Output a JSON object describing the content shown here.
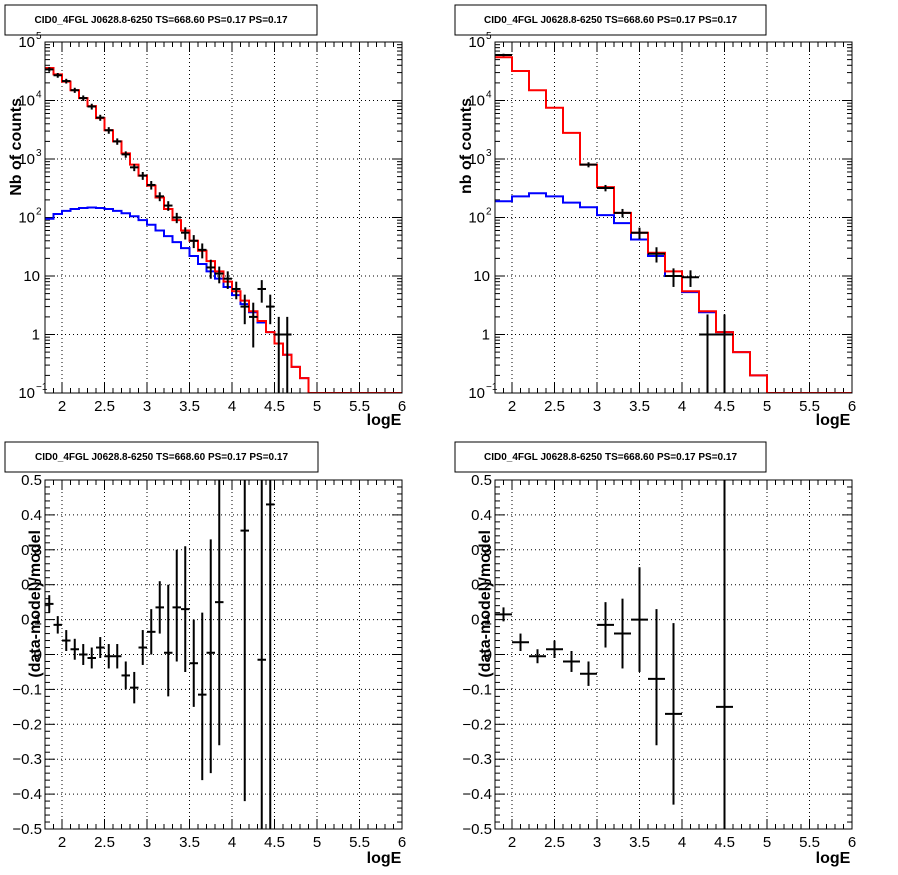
{
  "colors": {
    "model_total": "#ff0000",
    "model_background": "#0000ff",
    "data": "#000000"
  },
  "chart_data": [
    {
      "type": "line",
      "title": "CID0_4FGL J0628.8-6250 TS=668.60 PS=0.17 PS=0.17",
      "xlabel": "logE",
      "ylabel": "Nb of counts",
      "xlim": [
        1.8,
        6.0
      ],
      "ylim": [
        0.1,
        100000
      ],
      "yscale": "log",
      "grid": true,
      "x_ticks": [
        "2",
        "2.5",
        "3",
        "3.5",
        "4",
        "4.5",
        "5",
        "5.5",
        "6"
      ],
      "y_ticks": [
        {
          "base": "10",
          "exp": "−1"
        },
        {
          "base": "1",
          "exp": ""
        },
        {
          "base": "10",
          "exp": ""
        },
        {
          "base": "10",
          "exp": "2"
        },
        {
          "base": "10",
          "exp": "3"
        },
        {
          "base": "10",
          "exp": "4"
        },
        {
          "base": "10",
          "exp": "5"
        }
      ],
      "bin_edges": [
        1.8,
        1.9,
        2.0,
        2.1,
        2.2,
        2.3,
        2.4,
        2.5,
        2.6,
        2.7,
        2.8,
        2.9,
        3.0,
        3.1,
        3.2,
        3.3,
        3.4,
        3.5,
        3.6,
        3.7,
        3.8,
        3.9,
        4.0,
        4.1,
        4.2,
        4.3,
        4.4,
        4.5,
        4.6,
        4.7,
        4.8,
        4.9,
        5.0,
        5.1,
        5.2,
        5.3,
        5.4,
        5.5,
        5.6,
        5.7,
        5.8,
        5.9,
        6.0
      ],
      "series": [
        {
          "role": "model_total",
          "values": [
            36000,
            28000,
            21000,
            15000,
            11000,
            8000,
            5000,
            3100,
            2000,
            1250,
            800,
            520,
            350,
            220,
            140,
            90,
            60,
            40,
            27,
            18,
            12,
            8,
            5.5,
            3.8,
            2.5,
            1.7,
            1.1,
            0.7,
            0.45,
            0.28,
            0.18,
            0.1,
            0.1,
            0.1,
            0.1,
            0.1,
            0.1,
            0.1,
            0.1,
            0.1,
            0.1,
            0.1
          ]
        },
        {
          "role": "model_background",
          "values": [
            95,
            115,
            130,
            140,
            145,
            148,
            145,
            140,
            130,
            118,
            105,
            90,
            75,
            60,
            48,
            38,
            30,
            22,
            16,
            12,
            9,
            6.5,
            4.7,
            3.3,
            2.4,
            1.6,
            1.1,
            0.7,
            0.45,
            0.28,
            0.18,
            0.1,
            0.1,
            0.1,
            0.1,
            0.1,
            0.1,
            0.1,
            0.1,
            0.1,
            0.1,
            0.1
          ]
        },
        {
          "role": "data",
          "points": [
            {
              "x": 1.85,
              "y": 34000,
              "lo": 31000,
              "hi": 37000
            },
            {
              "x": 1.95,
              "y": 27000,
              "lo": 24500,
              "hi": 29500
            },
            {
              "x": 2.05,
              "y": 21500,
              "lo": 19500,
              "hi": 23500
            },
            {
              "x": 2.15,
              "y": 15000,
              "lo": 13500,
              "hi": 16500
            },
            {
              "x": 2.25,
              "y": 11000,
              "lo": 9800,
              "hi": 12200
            },
            {
              "x": 2.35,
              "y": 7900,
              "lo": 7000,
              "hi": 8800
            },
            {
              "x": 2.45,
              "y": 5100,
              "lo": 4500,
              "hi": 5700
            },
            {
              "x": 2.55,
              "y": 3100,
              "lo": 2700,
              "hi": 3500
            },
            {
              "x": 2.65,
              "y": 2000,
              "lo": 1750,
              "hi": 2250
            },
            {
              "x": 2.75,
              "y": 1200,
              "lo": 1050,
              "hi": 1350
            },
            {
              "x": 2.85,
              "y": 720,
              "lo": 620,
              "hi": 820
            },
            {
              "x": 2.95,
              "y": 520,
              "lo": 440,
              "hi": 600
            },
            {
              "x": 3.05,
              "y": 360,
              "lo": 300,
              "hi": 420
            },
            {
              "x": 3.15,
              "y": 230,
              "lo": 190,
              "hi": 270
            },
            {
              "x": 3.25,
              "y": 160,
              "lo": 130,
              "hi": 190
            },
            {
              "x": 3.35,
              "y": 100,
              "lo": 80,
              "hi": 120
            },
            {
              "x": 3.45,
              "y": 55,
              "lo": 42,
              "hi": 68
            },
            {
              "x": 3.55,
              "y": 40,
              "lo": 30,
              "hi": 50
            },
            {
              "x": 3.65,
              "y": 28,
              "lo": 20,
              "hi": 36
            },
            {
              "x": 3.75,
              "y": 14,
              "lo": 9,
              "hi": 19
            },
            {
              "x": 3.85,
              "y": 11,
              "lo": 7.5,
              "hi": 14.5
            },
            {
              "x": 3.95,
              "y": 9,
              "lo": 6,
              "hi": 12
            },
            {
              "x": 4.05,
              "y": 6,
              "lo": 4,
              "hi": 8
            },
            {
              "x": 4.15,
              "y": 3,
              "lo": 1.5,
              "hi": 4.8
            },
            {
              "x": 4.25,
              "y": 2,
              "lo": 0.6,
              "hi": 3.5
            },
            {
              "x": 4.35,
              "y": 6,
              "lo": 3.5,
              "hi": 8.5
            },
            {
              "x": 4.45,
              "y": 3,
              "lo": 1.5,
              "hi": 4.8
            },
            {
              "x": 4.55,
              "y": 1,
              "lo": 0.1,
              "hi": 2.0
            },
            {
              "x": 4.65,
              "y": 1,
              "lo": 0.1,
              "hi": 2.0
            }
          ]
        }
      ]
    },
    {
      "type": "line",
      "title": "CID0_4FGL J0628.8-6250 TS=668.60 PS=0.17 PS=0.17",
      "xlabel": "logE",
      "ylabel": "nb of counts",
      "xlim": [
        1.8,
        6.0
      ],
      "ylim": [
        0.1,
        100000
      ],
      "yscale": "log",
      "grid": true,
      "x_ticks": [
        "2",
        "2.5",
        "3",
        "3.5",
        "4",
        "4.5",
        "5",
        "5.5",
        "6"
      ],
      "y_ticks": [
        {
          "base": "10",
          "exp": "−1"
        },
        {
          "base": "1",
          "exp": ""
        },
        {
          "base": "10",
          "exp": ""
        },
        {
          "base": "10",
          "exp": "2"
        },
        {
          "base": "10",
          "exp": "3"
        },
        {
          "base": "10",
          "exp": "4"
        },
        {
          "base": "10",
          "exp": "5"
        }
      ],
      "bin_edges": [
        1.8,
        2.0,
        2.2,
        2.4,
        2.6,
        2.8,
        3.0,
        3.2,
        3.4,
        3.6,
        3.8,
        4.0,
        4.2,
        4.4,
        4.6,
        4.8,
        5.0,
        5.2,
        5.4,
        5.6,
        5.8,
        6.0
      ],
      "series": [
        {
          "role": "model_total",
          "values": [
            55000,
            32000,
            15000,
            7500,
            2800,
            800,
            330,
            120,
            55,
            25,
            12,
            5.5,
            2.5,
            1.1,
            0.5,
            0.2,
            0.1,
            0.1,
            0.1,
            0.1,
            0.1
          ]
        },
        {
          "role": "model_background",
          "values": [
            190,
            230,
            260,
            230,
            180,
            150,
            110,
            80,
            42,
            22,
            10,
            5.3,
            2.4,
            1.1,
            0.5,
            0.2,
            0.1,
            0.1,
            0.1,
            0.1,
            0.1
          ]
        },
        {
          "role": "data",
          "points": [
            {
              "x": 1.9,
              "y": 60000,
              "lo": 57000,
              "hi": 63000
            },
            {
              "x": 2.9,
              "y": 800,
              "lo": 720,
              "hi": 880
            },
            {
              "x": 3.1,
              "y": 320,
              "lo": 280,
              "hi": 360
            },
            {
              "x": 3.3,
              "y": 120,
              "lo": 100,
              "hi": 140
            },
            {
              "x": 3.5,
              "y": 55,
              "lo": 43,
              "hi": 67
            },
            {
              "x": 3.7,
              "y": 24,
              "lo": 17,
              "hi": 31
            },
            {
              "x": 3.9,
              "y": 10,
              "lo": 6.5,
              "hi": 13.5
            },
            {
              "x": 4.1,
              "y": 9.5,
              "lo": 6.5,
              "hi": 12.5
            },
            {
              "x": 4.3,
              "y": 1,
              "lo": 0.1,
              "hi": 2.2
            },
            {
              "x": 4.5,
              "y": 1,
              "lo": 0.1,
              "hi": 2.2
            }
          ]
        }
      ]
    },
    {
      "type": "scatter",
      "title": "CID0_4FGL J0628.8-6250 TS=668.60 PS=0.17 PS=0.17",
      "xlabel": "logE",
      "ylabel": "(data-model)/model",
      "xlim": [
        1.8,
        6.0
      ],
      "ylim": [
        -0.5,
        0.5
      ],
      "grid": true,
      "x_ticks": [
        "2",
        "2.5",
        "3",
        "3.5",
        "4",
        "4.5",
        "5",
        "5.5",
        "6"
      ],
      "y_ticks": [
        "−0.5",
        "−0.4",
        "−0.3",
        "−0.2",
        "−0.1",
        "0",
        "0.1",
        "0.2",
        "0.3",
        "0.4",
        "0.5"
      ],
      "xerr": 0.05,
      "points": [
        {
          "x": 1.85,
          "y": 0.145,
          "lo": 0.12,
          "hi": 0.17
        },
        {
          "x": 1.95,
          "y": 0.085,
          "lo": 0.06,
          "hi": 0.11
        },
        {
          "x": 2.05,
          "y": 0.04,
          "lo": 0.01,
          "hi": 0.07
        },
        {
          "x": 2.15,
          "y": 0.015,
          "lo": -0.015,
          "hi": 0.045
        },
        {
          "x": 2.25,
          "y": 0.0,
          "lo": -0.03,
          "hi": 0.03
        },
        {
          "x": 2.35,
          "y": -0.01,
          "lo": -0.04,
          "hi": 0.02
        },
        {
          "x": 2.45,
          "y": 0.02,
          "lo": -0.01,
          "hi": 0.05
        },
        {
          "x": 2.55,
          "y": -0.005,
          "lo": -0.04,
          "hi": 0.03
        },
        {
          "x": 2.65,
          "y": -0.005,
          "lo": -0.04,
          "hi": 0.03
        },
        {
          "x": 2.75,
          "y": -0.06,
          "lo": -0.1,
          "hi": -0.02
        },
        {
          "x": 2.85,
          "y": -0.095,
          "lo": -0.14,
          "hi": -0.05
        },
        {
          "x": 2.95,
          "y": 0.02,
          "lo": -0.03,
          "hi": 0.07
        },
        {
          "x": 3.05,
          "y": 0.065,
          "lo": 0.0,
          "hi": 0.13
        },
        {
          "x": 3.15,
          "y": 0.135,
          "lo": 0.06,
          "hi": 0.21
        },
        {
          "x": 3.25,
          "y": 0.005,
          "lo": -0.12,
          "hi": 0.2
        },
        {
          "x": 3.35,
          "y": 0.135,
          "lo": -0.02,
          "hi": 0.3
        },
        {
          "x": 3.45,
          "y": 0.13,
          "lo": -0.05,
          "hi": 0.31
        },
        {
          "x": 3.55,
          "y": -0.025,
          "lo": -0.15,
          "hi": 0.1
        },
        {
          "x": 3.65,
          "y": -0.115,
          "lo": -0.36,
          "hi": 0.12
        },
        {
          "x": 3.75,
          "y": 0.005,
          "lo": -0.34,
          "hi": 0.33
        },
        {
          "x": 3.85,
          "y": 0.15,
          "lo": -0.26,
          "hi": 0.5
        },
        {
          "x": 4.15,
          "y": 0.355,
          "lo": -0.42,
          "hi": 0.5
        },
        {
          "x": 4.35,
          "y": -0.015,
          "lo": -0.5,
          "hi": 0.5
        },
        {
          "x": 4.45,
          "y": 0.43,
          "lo": -0.5,
          "hi": 0.5
        }
      ]
    },
    {
      "type": "scatter",
      "title": "CID0_4FGL J0628.8-6250 TS=668.60 PS=0.17 PS=0.17",
      "xlabel": "logE",
      "ylabel": "(data-model)/model",
      "xlim": [
        1.8,
        6.0
      ],
      "ylim": [
        -0.5,
        0.5
      ],
      "grid": true,
      "x_ticks": [
        "2",
        "2.5",
        "3",
        "3.5",
        "4",
        "4.5",
        "5",
        "5.5",
        "6"
      ],
      "y_ticks": [
        "−0.5",
        "−0.4",
        "−0.3",
        "−0.2",
        "−0.1",
        "0",
        "0.1",
        "0.2",
        "0.3",
        "0.4",
        "0.5"
      ],
      "xerr": 0.1,
      "points": [
        {
          "x": 1.9,
          "y": 0.115,
          "lo": 0.095,
          "hi": 0.135
        },
        {
          "x": 2.1,
          "y": 0.035,
          "lo": 0.01,
          "hi": 0.06
        },
        {
          "x": 2.3,
          "y": -0.005,
          "lo": -0.025,
          "hi": 0.015
        },
        {
          "x": 2.5,
          "y": 0.015,
          "lo": -0.01,
          "hi": 0.04
        },
        {
          "x": 2.7,
          "y": -0.02,
          "lo": -0.05,
          "hi": 0.01
        },
        {
          "x": 2.9,
          "y": -0.055,
          "lo": -0.09,
          "hi": -0.02
        },
        {
          "x": 3.1,
          "y": 0.085,
          "lo": 0.02,
          "hi": 0.15
        },
        {
          "x": 3.3,
          "y": 0.06,
          "lo": -0.04,
          "hi": 0.16
        },
        {
          "x": 3.5,
          "y": 0.1,
          "lo": -0.05,
          "hi": 0.25
        },
        {
          "x": 3.7,
          "y": -0.07,
          "lo": -0.26,
          "hi": 0.13
        },
        {
          "x": 3.9,
          "y": -0.17,
          "lo": -0.43,
          "hi": 0.09
        },
        {
          "x": 4.5,
          "y": -0.15,
          "lo": -0.5,
          "hi": 0.5
        }
      ]
    }
  ]
}
